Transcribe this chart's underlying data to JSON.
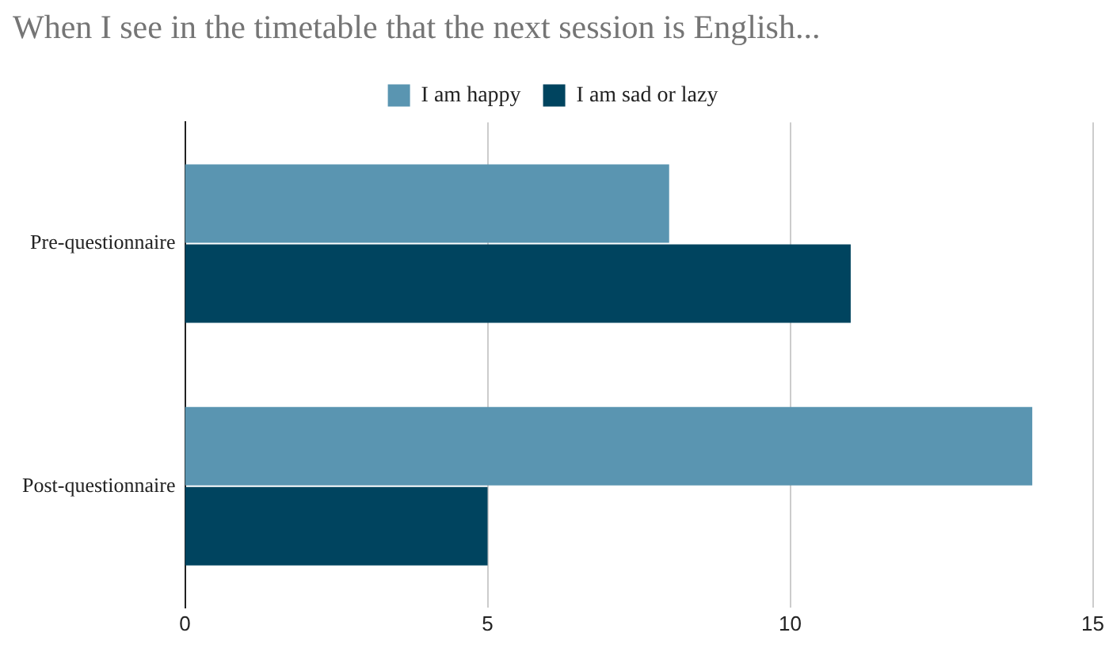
{
  "chart_data": {
    "type": "bar",
    "orientation": "horizontal",
    "title": "When I see in the timetable that the next session is English...",
    "categories": [
      "Pre-questionnaire",
      "Post-questionnaire"
    ],
    "series": [
      {
        "name": "I am happy",
        "color": "#5a95b1",
        "values": [
          8,
          14
        ]
      },
      {
        "name": "I am sad or lazy",
        "color": "#00445f",
        "values": [
          11,
          5
        ]
      }
    ],
    "xlim": [
      0,
      15
    ],
    "xticks": [
      0,
      5,
      10,
      15
    ],
    "grid": "x",
    "legend": "top"
  }
}
